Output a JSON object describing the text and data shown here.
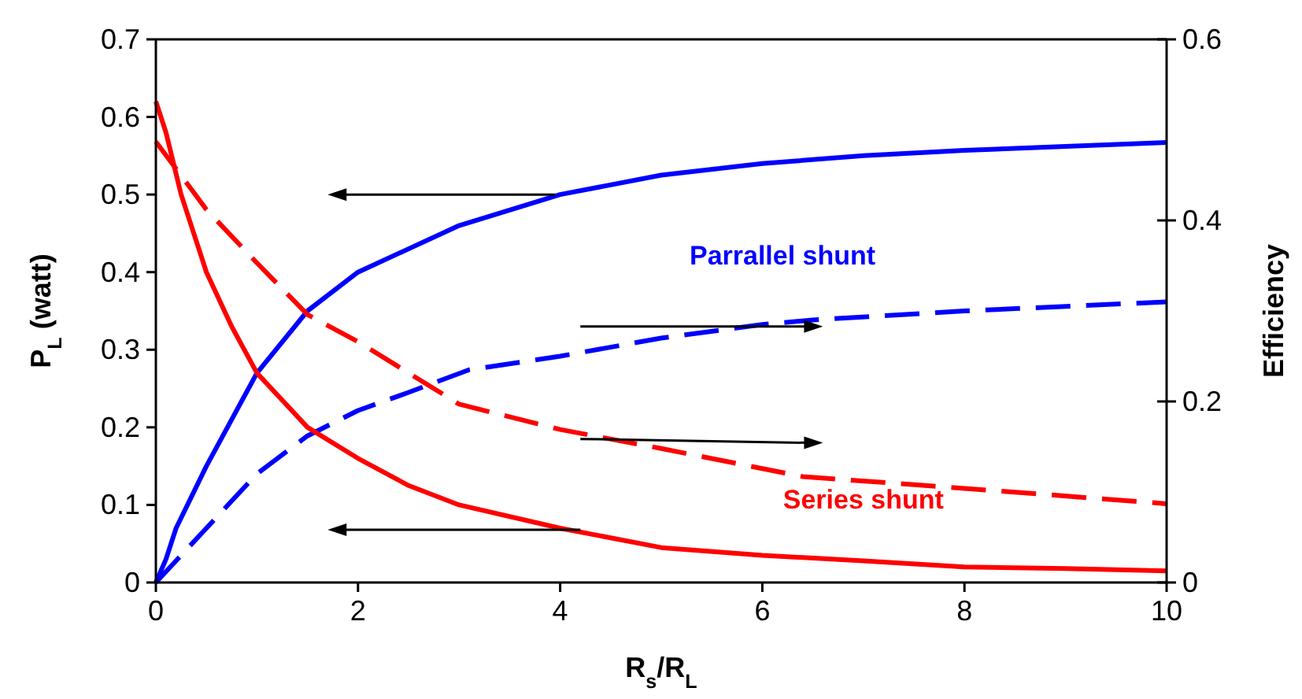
{
  "chart_data": {
    "type": "line",
    "xlabel": "R$_{s}$/R$_{L}$",
    "ylabel": "P$_{L}$ (watt)",
    "y2label": "Efficiency",
    "xlim": [
      0,
      10
    ],
    "xticks": [
      0,
      2,
      4,
      6,
      8,
      10
    ],
    "ylim": [
      0,
      0.7
    ],
    "yticks": [
      0,
      0.1,
      0.2,
      0.3,
      0.4,
      0.5,
      0.6,
      0.7
    ],
    "y2lim": [
      0,
      0.6
    ],
    "y2ticks": [
      0,
      0.2,
      0.4,
      0.6
    ],
    "grid": false,
    "marker": "none",
    "series": [
      {
        "color": "#0000ff",
        "line_style": "solid",
        "x": [
          0,
          0.1,
          0.2,
          0.5,
          1,
          1.5,
          2,
          3,
          4,
          5,
          6,
          7,
          8,
          9,
          10
        ],
        "values": [
          0,
          0.03,
          0.07,
          0.15,
          0.27,
          0.35,
          0.4,
          0.46,
          0.5,
          0.525,
          0.54,
          0.55,
          0.557,
          0.562,
          0.567
        ]
      },
      {
        "color": "#0000ff",
        "line_style": "dashed",
        "axis": "y2",
        "x": [
          0,
          0.5,
          1,
          1.5,
          2,
          2.5,
          3.1,
          4,
          5,
          6,
          6.5,
          8,
          10
        ],
        "values": [
          0,
          0.06,
          0.12,
          0.162,
          0.19,
          0.21,
          0.235,
          0.25,
          0.27,
          0.285,
          0.29,
          0.3,
          0.31
        ]
      },
      {
        "color": "#ff0000",
        "line_style": "solid",
        "x": [
          0,
          0.1,
          0.25,
          0.5,
          0.75,
          1,
          1.5,
          2,
          2.5,
          3,
          4,
          5,
          6,
          7,
          8,
          9,
          10
        ],
        "values": [
          0.62,
          0.58,
          0.5,
          0.4,
          0.33,
          0.27,
          0.2,
          0.16,
          0.125,
          0.1,
          0.07,
          0.045,
          0.035,
          0.028,
          0.02,
          0.018,
          0.015
        ]
      },
      {
        "color": "#ff0000",
        "line_style": "dashed",
        "axis": "y2",
        "x": [
          0,
          0.5,
          1,
          1.5,
          2,
          3,
          4,
          5,
          6.4,
          8,
          10
        ],
        "values": [
          0.487,
          0.412,
          0.353,
          0.296,
          0.266,
          0.197,
          0.169,
          0.148,
          0.117,
          0.104,
          0.087
        ]
      }
    ],
    "annotations": [
      "Parrallel shunt",
      "Series shunt"
    ]
  }
}
